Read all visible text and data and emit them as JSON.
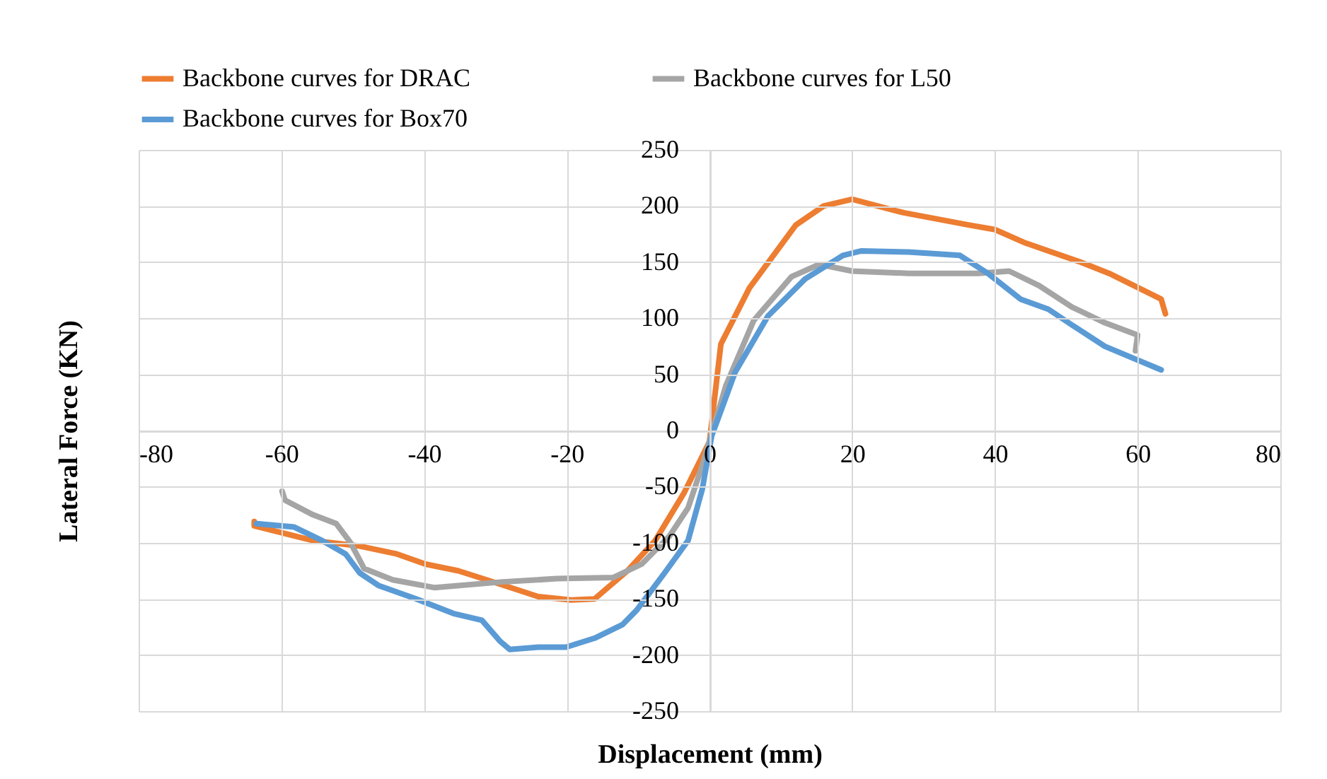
{
  "chart_data": {
    "type": "line",
    "xlabel": "Displacement (mm)",
    "ylabel": "Lateral Force (KN)",
    "xlim": [
      -80,
      80
    ],
    "xticks": [
      -80,
      -60,
      -40,
      -20,
      0,
      20,
      40,
      60,
      80
    ],
    "ylim": [
      -250,
      250
    ],
    "yticks": [
      -250,
      -200,
      -150,
      -100,
      -50,
      0,
      50,
      100,
      150,
      200,
      250
    ],
    "grid": true,
    "legend": "top",
    "series": [
      {
        "name": "Backbone curves for DRAC",
        "color": "#ed7d31",
        "x": [
          -63.8,
          -63.8,
          -55.6,
          -49,
          -43.8,
          -39.8,
          -35.2,
          -29.3,
          -24,
          -19.4,
          -16.1,
          -11.5,
          -7.6,
          -3.6,
          0,
          1.6,
          5.6,
          12.1,
          16,
          20,
          27.2,
          36.4,
          40,
          44.3,
          52,
          56,
          63.3,
          63.9
        ],
        "values": [
          -81,
          -85,
          -98,
          -103,
          -110,
          -119,
          -125,
          -137,
          -148,
          -151,
          -150,
          -125,
          -98,
          -56,
          -10,
          77,
          127,
          183,
          200,
          206,
          194,
          183,
          179,
          167,
          150,
          140,
          117,
          104
        ]
      },
      {
        "name": "Backbone curves for L50",
        "color": "#a5a5a5",
        "x": [
          -59.9,
          -59.5,
          -55.6,
          -52.3,
          -50.3,
          -48.4,
          -44.4,
          -38.5,
          -29.3,
          -21.4,
          -13.5,
          -9.5,
          -5.6,
          -3,
          -1,
          2.3,
          6.2,
          11.5,
          15.4,
          20,
          27.9,
          37.7,
          42,
          46.2,
          50.8,
          55.4,
          60,
          59.7
        ],
        "values": [
          -54,
          -62,
          -75,
          -83,
          -100,
          -123,
          -133,
          -140,
          -135,
          -132,
          -131,
          -119,
          -94,
          -69,
          -31,
          40,
          98,
          137,
          148,
          142,
          140,
          140,
          142,
          129,
          110,
          96,
          85,
          71
        ]
      },
      {
        "name": "Backbone curves for Box70",
        "color": "#5b9bd5",
        "x": [
          -63.5,
          -58.2,
          -54.3,
          -51,
          -49,
          -46.4,
          -41.1,
          -35.9,
          -31.9,
          -29.3,
          -28,
          -24,
          -20.1,
          -16.1,
          -12.2,
          -10.2,
          -6.3,
          -3,
          -1,
          0.3,
          3.6,
          8.2,
          13.4,
          18.7,
          21.3,
          27.9,
          35.1,
          39,
          43.6,
          47.5,
          50.8,
          55.4,
          63.3
        ],
        "values": [
          -83,
          -86,
          -98,
          -110,
          -127,
          -138,
          -150,
          -163,
          -169,
          -188,
          -195,
          -193,
          -193,
          -185,
          -173,
          -160,
          -127,
          -98,
          -52,
          -5,
          52,
          102,
          135,
          156,
          160,
          159,
          156,
          140,
          117,
          108,
          94,
          75,
          54
        ]
      }
    ]
  }
}
